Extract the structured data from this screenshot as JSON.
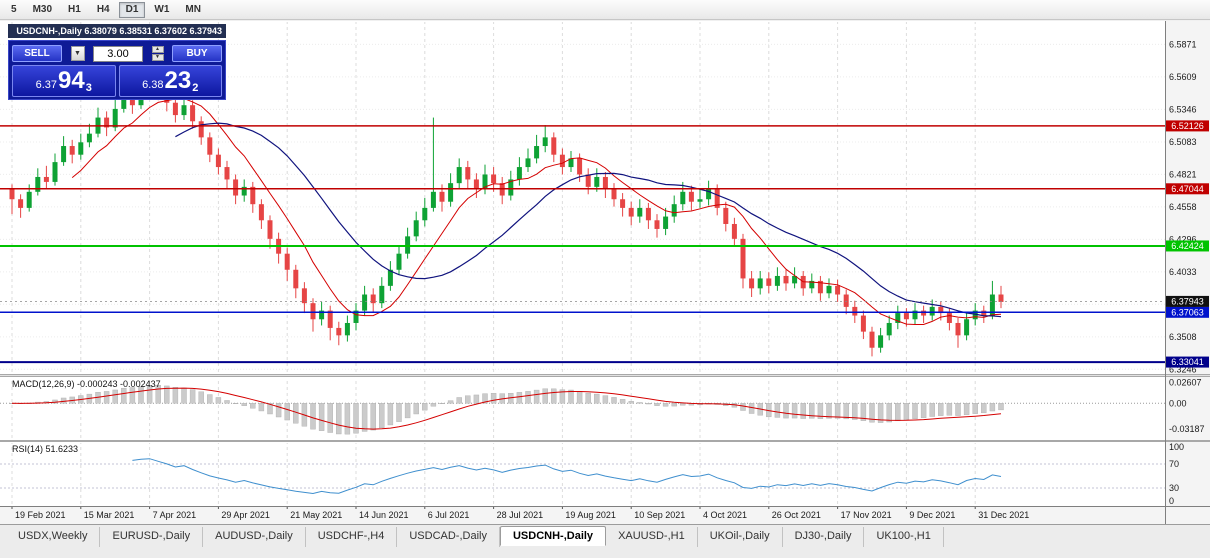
{
  "chart_title": "USDCNH-,Daily 6.38079 6.38531 6.37602 6.37943",
  "toolbar": {
    "timeframes": [
      "5",
      "M30",
      "H1",
      "H4",
      "D1",
      "W1",
      "MN"
    ],
    "active": "D1"
  },
  "trade_panel": {
    "sell_label": "SELL",
    "buy_label": "BUY",
    "volume": "3.00",
    "sell_price_prefix": "6.37",
    "sell_price_big": "94",
    "sell_price_sup": "3",
    "buy_price_prefix": "6.38",
    "buy_price_big": "23",
    "buy_price_sup": "2"
  },
  "icons": {
    "dropdown": "▼",
    "spin_up": "▲",
    "spin_down": "▼"
  },
  "indicators": {
    "macd_label": "MACD(12,26,9) -0.000243 -0.002437",
    "rsi_label": "RSI(14) 51.6233"
  },
  "axis": {
    "main_ticks": [
      6.5871,
      6.5609,
      6.5346,
      6.5083,
      6.4821,
      6.4558,
      6.4296,
      6.4033,
      6.3771,
      6.3508,
      6.3246
    ],
    "macd_ticks": [
      {
        "v": 0.02607,
        "label": "0.02607"
      },
      {
        "v": 0.0,
        "label": "0.00"
      },
      {
        "v": -0.03187,
        "label": "-0.03187"
      }
    ],
    "rsi_ticks": [
      {
        "v": 100,
        "label": "100"
      },
      {
        "v": 70,
        "label": "70"
      },
      {
        "v": 30,
        "label": "30"
      },
      {
        "v": 0,
        "label": "0"
      }
    ]
  },
  "hlines": [
    {
      "price": 6.52126,
      "label": "6.52126",
      "color": "#c00000",
      "width": 1.5
    },
    {
      "price": 6.47044,
      "label": "6.47044",
      "color": "#c00000",
      "width": 1.5
    },
    {
      "price": 6.42424,
      "label": "6.42424",
      "color": "#00c300",
      "width": 2
    },
    {
      "price": 6.37063,
      "label": "6.37063",
      "color": "#0012cc",
      "width": 1.5
    },
    {
      "price": 6.33041,
      "label": "6.33041",
      "color": "#00008b",
      "width": 2
    }
  ],
  "current_price": {
    "price": 6.37943,
    "label": "6.37943",
    "color": "#101010"
  },
  "dates": [
    "19 Feb 2021",
    "15 Mar 2021",
    "7 Apr 2021",
    "29 Apr 2021",
    "21 May 2021",
    "14 Jun 2021",
    "6 Jul 2021",
    "28 Jul 2021",
    "19 Aug 2021",
    "10 Sep 2021",
    "4 Oct 2021",
    "26 Oct 2021",
    "17 Nov 2021",
    "9 Dec 2021",
    "31 Dec 2021"
  ],
  "tabs": [
    {
      "label": "USDX,Weekly",
      "active": false
    },
    {
      "label": "EURUSD-,Daily",
      "active": false
    },
    {
      "label": "AUDUSD-,Daily",
      "active": false
    },
    {
      "label": "USDCHF-,H4",
      "active": false
    },
    {
      "label": "USDCAD-,Daily",
      "active": false
    },
    {
      "label": "USDCNH-,Daily",
      "active": true
    },
    {
      "label": "XAUUSD-,H1",
      "active": false
    },
    {
      "label": "UKOil-,Daily",
      "active": false
    },
    {
      "label": "DJ30-,Daily",
      "active": false
    },
    {
      "label": "UK100-,H1",
      "active": false
    }
  ],
  "colors": {
    "candle_up": "#0ea234",
    "candle_down": "#e64545",
    "ma_fast": "#d40000",
    "ma_slow": "#10137e",
    "macd_hist": "#cbcbcb",
    "macd_hist_stroke": "#adadad",
    "macd_signal": "#d40000",
    "rsi": "#3f8fce",
    "badge_text": "#ffffff"
  },
  "chart_data": {
    "type": "candlestick",
    "symbol": "USDCNH-",
    "timeframe": "Daily",
    "current_bar": {
      "open": 6.38079,
      "high": 6.38531,
      "low": 6.37602,
      "close": 6.37943
    },
    "price_range": [
      6.324,
      6.602
    ],
    "first_open": 6.47,
    "ma_fast_period": 8,
    "ma_slow_period": 20,
    "macd_params": [
      12,
      26,
      9
    ],
    "rsi_period": 14,
    "tick_indices": [
      0,
      8,
      16,
      24,
      32,
      40,
      48,
      56,
      64,
      72,
      80,
      88,
      96,
      104,
      112
    ],
    "candles": [
      [
        6.474,
        6.45,
        6.462
      ],
      [
        6.466,
        6.447,
        6.455
      ],
      [
        6.474,
        6.452,
        6.468
      ],
      [
        6.487,
        6.465,
        6.48
      ],
      [
        6.489,
        6.471,
        6.476
      ],
      [
        6.499,
        6.473,
        6.492
      ],
      [
        6.513,
        6.489,
        6.505
      ],
      [
        6.51,
        6.491,
        6.498
      ],
      [
        6.515,
        6.494,
        6.508
      ],
      [
        6.523,
        6.504,
        6.515
      ],
      [
        6.536,
        6.512,
        6.528
      ],
      [
        6.533,
        6.513,
        6.52
      ],
      [
        6.543,
        6.517,
        6.535
      ],
      [
        6.558,
        6.532,
        6.547
      ],
      [
        6.552,
        6.531,
        6.538
      ],
      [
        6.56,
        6.535,
        6.55
      ],
      [
        6.572,
        6.546,
        6.556
      ],
      [
        6.563,
        6.542,
        6.548
      ],
      [
        6.553,
        6.533,
        6.54
      ],
      [
        6.546,
        6.524,
        6.53
      ],
      [
        6.547,
        6.526,
        6.538
      ],
      [
        6.542,
        6.519,
        6.525
      ],
      [
        6.529,
        6.506,
        6.512
      ],
      [
        6.516,
        6.492,
        6.498
      ],
      [
        6.503,
        6.482,
        6.488
      ],
      [
        6.493,
        6.471,
        6.478
      ],
      [
        6.482,
        6.458,
        6.465
      ],
      [
        6.478,
        6.46,
        6.472
      ],
      [
        6.476,
        6.451,
        6.458
      ],
      [
        6.462,
        6.438,
        6.445
      ],
      [
        6.449,
        6.422,
        6.43
      ],
      [
        6.435,
        6.41,
        6.418
      ],
      [
        6.423,
        6.396,
        6.405
      ],
      [
        6.409,
        6.382,
        6.39
      ],
      [
        6.395,
        6.37,
        6.378
      ],
      [
        6.382,
        6.355,
        6.365
      ],
      [
        6.379,
        6.36,
        6.372
      ],
      [
        6.376,
        6.348,
        6.358
      ],
      [
        6.363,
        6.344,
        6.352
      ],
      [
        6.368,
        6.347,
        6.362
      ],
      [
        6.378,
        6.356,
        6.372
      ],
      [
        6.392,
        6.368,
        6.385
      ],
      [
        6.39,
        6.371,
        6.378
      ],
      [
        6.399,
        6.374,
        6.392
      ],
      [
        6.412,
        6.388,
        6.405
      ],
      [
        6.424,
        6.401,
        6.418
      ],
      [
        6.439,
        6.414,
        6.432
      ],
      [
        6.452,
        6.428,
        6.445
      ],
      [
        6.463,
        6.44,
        6.455
      ],
      [
        6.528,
        6.452,
        6.468
      ],
      [
        6.474,
        6.452,
        6.46
      ],
      [
        6.483,
        6.456,
        6.475
      ],
      [
        6.495,
        6.47,
        6.488
      ],
      [
        6.493,
        6.471,
        6.478
      ],
      [
        6.483,
        6.463,
        6.47
      ],
      [
        6.49,
        6.466,
        6.482
      ],
      [
        6.488,
        6.468,
        6.475
      ],
      [
        6.48,
        6.458,
        6.465
      ],
      [
        6.485,
        6.461,
        6.478
      ],
      [
        6.496,
        6.473,
        6.488
      ],
      [
        6.503,
        6.484,
        6.495
      ],
      [
        6.514,
        6.491,
        6.505
      ],
      [
        6.522,
        6.5,
        6.512
      ],
      [
        6.516,
        6.492,
        6.498
      ],
      [
        6.503,
        6.482,
        6.488
      ],
      [
        6.501,
        6.484,
        6.495
      ],
      [
        6.499,
        6.476,
        6.482
      ],
      [
        6.487,
        6.466,
        6.472
      ],
      [
        6.487,
        6.468,
        6.48
      ],
      [
        6.484,
        6.463,
        6.47
      ],
      [
        6.475,
        6.456,
        6.462
      ],
      [
        6.467,
        6.448,
        6.455
      ],
      [
        6.46,
        6.441,
        6.448
      ],
      [
        6.462,
        6.443,
        6.455
      ],
      [
        6.459,
        6.438,
        6.445
      ],
      [
        6.45,
        6.431,
        6.438
      ],
      [
        6.455,
        6.433,
        6.448
      ],
      [
        6.465,
        6.443,
        6.458
      ],
      [
        6.476,
        6.453,
        6.468
      ],
      [
        6.473,
        6.453,
        6.46
      ],
      [
        6.47,
        6.455,
        6.462
      ],
      [
        6.477,
        6.457,
        6.47
      ],
      [
        6.474,
        6.449,
        6.455
      ],
      [
        6.46,
        6.436,
        6.442
      ],
      [
        6.447,
        6.424,
        6.43
      ],
      [
        6.434,
        6.39,
        6.398
      ],
      [
        6.404,
        6.383,
        6.39
      ],
      [
        6.404,
        6.385,
        6.398
      ],
      [
        6.403,
        6.386,
        6.392
      ],
      [
        6.407,
        6.388,
        6.4
      ],
      [
        6.405,
        6.388,
        6.394
      ],
      [
        6.407,
        6.39,
        6.4
      ],
      [
        6.404,
        6.384,
        6.39
      ],
      [
        6.402,
        6.386,
        6.396
      ],
      [
        6.4,
        6.38,
        6.386
      ],
      [
        6.398,
        6.382,
        6.392
      ],
      [
        6.397,
        6.379,
        6.385
      ],
      [
        6.389,
        6.369,
        6.375
      ],
      [
        6.38,
        6.362,
        6.368
      ],
      [
        6.372,
        6.349,
        6.355
      ],
      [
        6.359,
        6.335,
        6.342
      ],
      [
        6.358,
        6.338,
        6.352
      ],
      [
        6.368,
        6.348,
        6.362
      ],
      [
        6.376,
        6.357,
        6.37
      ],
      [
        6.374,
        6.359,
        6.365
      ],
      [
        6.378,
        6.361,
        6.372
      ],
      [
        6.376,
        6.362,
        6.368
      ],
      [
        6.381,
        6.364,
        6.375
      ],
      [
        6.379,
        6.364,
        6.37
      ],
      [
        6.374,
        6.356,
        6.362
      ],
      [
        6.366,
        6.342,
        6.352
      ],
      [
        6.371,
        6.348,
        6.365
      ],
      [
        6.378,
        6.36,
        6.372
      ],
      [
        6.376,
        6.362,
        6.368
      ],
      [
        6.396,
        6.365,
        6.385
      ],
      [
        6.392,
        6.374,
        6.379
      ]
    ]
  }
}
